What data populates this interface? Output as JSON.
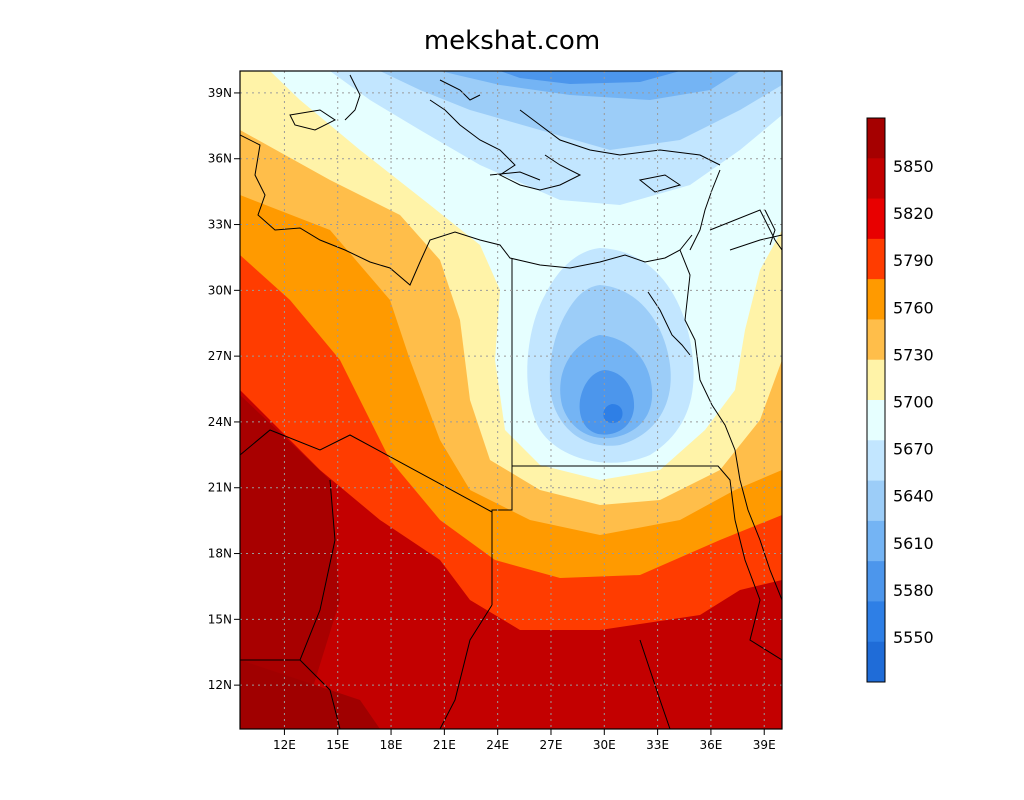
{
  "title": "mekshat.com",
  "map": {
    "lon_range": [
      9.5,
      40
    ],
    "lat_range": [
      10,
      40
    ],
    "lon_ticks": [
      "12E",
      "15E",
      "18E",
      "21E",
      "24E",
      "27E",
      "30E",
      "33E",
      "36E",
      "39E"
    ],
    "lat_ticks": [
      "12N",
      "15N",
      "18N",
      "21N",
      "24N",
      "27N",
      "30N",
      "33N",
      "36N",
      "39N"
    ],
    "low_center": {
      "lon": 30.5,
      "lat": 24.5
    },
    "grid": "dotted"
  },
  "colorbar": {
    "labels": [
      "5850",
      "5820",
      "5790",
      "5760",
      "5730",
      "5700",
      "5670",
      "5640",
      "5610",
      "5580",
      "5550"
    ],
    "colors": [
      "#a50000",
      "#c30000",
      "#e80000",
      "#ff3c00",
      "#ff9a00",
      "#ffbe4a",
      "#fff3a8",
      "#e6ffff",
      "#c2e6ff",
      "#9ccdf8",
      "#74b4f4",
      "#4c96ec",
      "#2e7fe6",
      "#1f6cd8"
    ]
  }
}
